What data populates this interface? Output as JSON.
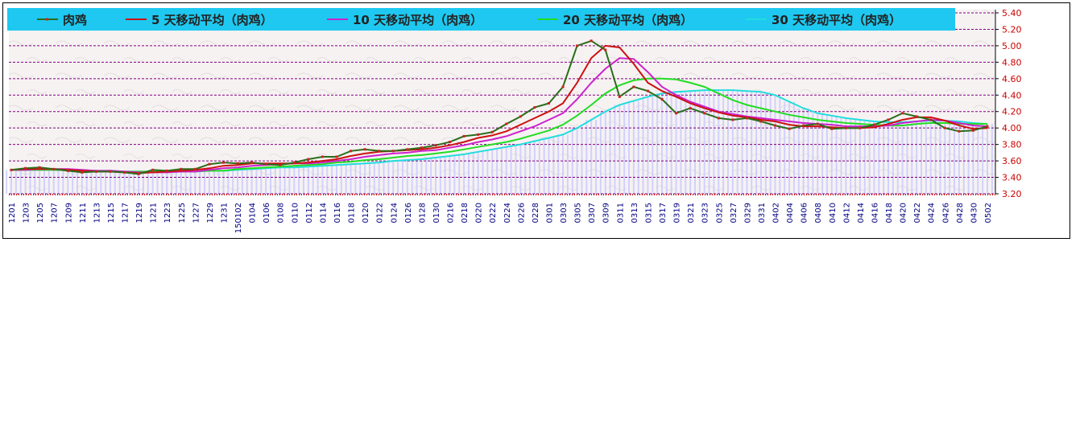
{
  "chart_data": {
    "type": "line",
    "ylim": [
      3.2,
      5.4
    ],
    "y_ticks": [
      "5.40",
      "5.20",
      "5.00",
      "4.80",
      "4.60",
      "4.40",
      "4.20",
      "4.00",
      "3.80",
      "3.60",
      "3.40",
      "3.20"
    ],
    "y_axis_position": "right",
    "grid": "horizontal dashed",
    "legend_position": "top",
    "x_tick_labels": [
      "1201",
      "1203",
      "1205",
      "1207",
      "1209",
      "1211",
      "1213",
      "1215",
      "1217",
      "1219",
      "1221",
      "1223",
      "1225",
      "1227",
      "1229",
      "1231",
      "150102",
      "0104",
      "0106",
      "0108",
      "0110",
      "0112",
      "0114",
      "0116",
      "0118",
      "0120",
      "0122",
      "0124",
      "0126",
      "0128",
      "0130",
      "0216",
      "0218",
      "0220",
      "0222",
      "0224",
      "0226",
      "0228",
      "0301",
      "0303",
      "0305",
      "0307",
      "0309",
      "0311",
      "0313",
      "0315",
      "0317",
      "0319",
      "0321",
      "0323",
      "0325",
      "0327",
      "0329",
      "0331",
      "0402",
      "0404",
      "0406",
      "0408",
      "0410",
      "0412",
      "0414",
      "0416",
      "0418",
      "0420",
      "0422",
      "0424",
      "0426",
      "0428",
      "0430",
      "0502"
    ],
    "series": [
      {
        "name": "肉鸡",
        "color": "#2a6e1a",
        "marker_color": "#cc2222",
        "values": [
          3.49,
          3.51,
          3.52,
          3.5,
          3.48,
          3.46,
          3.47,
          3.47,
          3.46,
          3.44,
          3.49,
          3.48,
          3.5,
          3.5,
          3.56,
          3.58,
          3.57,
          3.58,
          3.56,
          3.55,
          3.58,
          3.62,
          3.65,
          3.65,
          3.72,
          3.74,
          3.72,
          3.72,
          3.74,
          3.76,
          3.79,
          3.83,
          3.9,
          3.92,
          3.95,
          4.05,
          4.14,
          4.25,
          4.3,
          4.5,
          5.0,
          5.06,
          4.95,
          4.38,
          4.5,
          4.45,
          4.35,
          4.18,
          4.24,
          4.18,
          4.12,
          4.1,
          4.12,
          4.08,
          4.03,
          3.99,
          4.03,
          4.05,
          3.99,
          4.0,
          4.0,
          4.04,
          4.1,
          4.18,
          4.14,
          4.1,
          4.0,
          3.96,
          3.97,
          4.02
        ]
      },
      {
        "name": "5 天移动平均（肉鸡）",
        "color": "#cc1111",
        "values": [
          3.49,
          3.5,
          3.5,
          3.5,
          3.49,
          3.48,
          3.47,
          3.47,
          3.46,
          3.45,
          3.46,
          3.47,
          3.48,
          3.49,
          3.51,
          3.54,
          3.55,
          3.57,
          3.57,
          3.57,
          3.57,
          3.58,
          3.6,
          3.62,
          3.66,
          3.69,
          3.71,
          3.72,
          3.73,
          3.74,
          3.76,
          3.79,
          3.83,
          3.88,
          3.91,
          3.96,
          4.04,
          4.12,
          4.2,
          4.3,
          4.55,
          4.85,
          5.0,
          4.98,
          4.78,
          4.55,
          4.45,
          4.38,
          4.3,
          4.24,
          4.19,
          4.15,
          4.13,
          4.1,
          4.08,
          4.04,
          4.02,
          4.02,
          4.01,
          4.0,
          4.0,
          4.01,
          4.05,
          4.1,
          4.13,
          4.13,
          4.09,
          4.03,
          3.99,
          4.0
        ]
      },
      {
        "name": "10 天移动平均（肉鸡）",
        "color": "#cc22cc",
        "values": [
          3.49,
          3.49,
          3.5,
          3.5,
          3.5,
          3.49,
          3.48,
          3.48,
          3.47,
          3.46,
          3.46,
          3.46,
          3.47,
          3.47,
          3.49,
          3.51,
          3.52,
          3.54,
          3.55,
          3.56,
          3.57,
          3.57,
          3.58,
          3.6,
          3.62,
          3.65,
          3.67,
          3.69,
          3.7,
          3.72,
          3.73,
          3.76,
          3.79,
          3.83,
          3.86,
          3.9,
          3.96,
          4.02,
          4.1,
          4.18,
          4.35,
          4.55,
          4.72,
          4.85,
          4.84,
          4.68,
          4.5,
          4.4,
          4.32,
          4.26,
          4.2,
          4.17,
          4.14,
          4.12,
          4.1,
          4.08,
          4.06,
          4.05,
          4.04,
          4.02,
          4.02,
          4.02,
          4.03,
          4.06,
          4.08,
          4.1,
          4.09,
          4.06,
          4.03,
          4.02
        ]
      },
      {
        "name": "20 天移动平均（肉鸡）",
        "color": "#22dd22",
        "values": [
          3.49,
          3.49,
          3.49,
          3.49,
          3.49,
          3.48,
          3.48,
          3.47,
          3.47,
          3.47,
          3.47,
          3.47,
          3.47,
          3.47,
          3.48,
          3.48,
          3.5,
          3.51,
          3.52,
          3.53,
          3.54,
          3.55,
          3.56,
          3.58,
          3.59,
          3.61,
          3.62,
          3.64,
          3.66,
          3.67,
          3.69,
          3.71,
          3.74,
          3.77,
          3.8,
          3.83,
          3.87,
          3.92,
          3.97,
          4.04,
          4.15,
          4.28,
          4.42,
          4.52,
          4.58,
          4.6,
          4.6,
          4.59,
          4.55,
          4.5,
          4.42,
          4.34,
          4.28,
          4.24,
          4.2,
          4.16,
          4.13,
          4.1,
          4.08,
          4.06,
          4.05,
          4.04,
          4.03,
          4.03,
          4.05,
          4.06,
          4.06,
          4.05,
          4.05,
          4.05
        ]
      },
      {
        "name": "30 天移动平均（肉鸡）",
        "color": "#22dddd",
        "values": [
          3.49,
          3.49,
          3.49,
          3.49,
          3.49,
          3.48,
          3.48,
          3.48,
          3.47,
          3.47,
          3.47,
          3.47,
          3.47,
          3.47,
          3.48,
          3.48,
          3.49,
          3.5,
          3.51,
          3.52,
          3.52,
          3.53,
          3.54,
          3.55,
          3.56,
          3.57,
          3.58,
          3.6,
          3.61,
          3.62,
          3.64,
          3.66,
          3.68,
          3.71,
          3.74,
          3.77,
          3.8,
          3.84,
          3.88,
          3.92,
          4.0,
          4.1,
          4.2,
          4.28,
          4.33,
          4.38,
          4.42,
          4.44,
          4.45,
          4.46,
          4.46,
          4.46,
          4.45,
          4.44,
          4.4,
          4.32,
          4.24,
          4.18,
          4.15,
          4.12,
          4.1,
          4.08,
          4.07,
          4.07,
          4.08,
          4.09,
          4.09,
          4.08,
          4.06,
          4.05
        ]
      }
    ],
    "colors": {
      "legend_bg": "#1ec8f0",
      "grid": "#800080",
      "ytick": "#cc0000",
      "xtick": "#000080",
      "bars": "#c8c8ff"
    }
  }
}
